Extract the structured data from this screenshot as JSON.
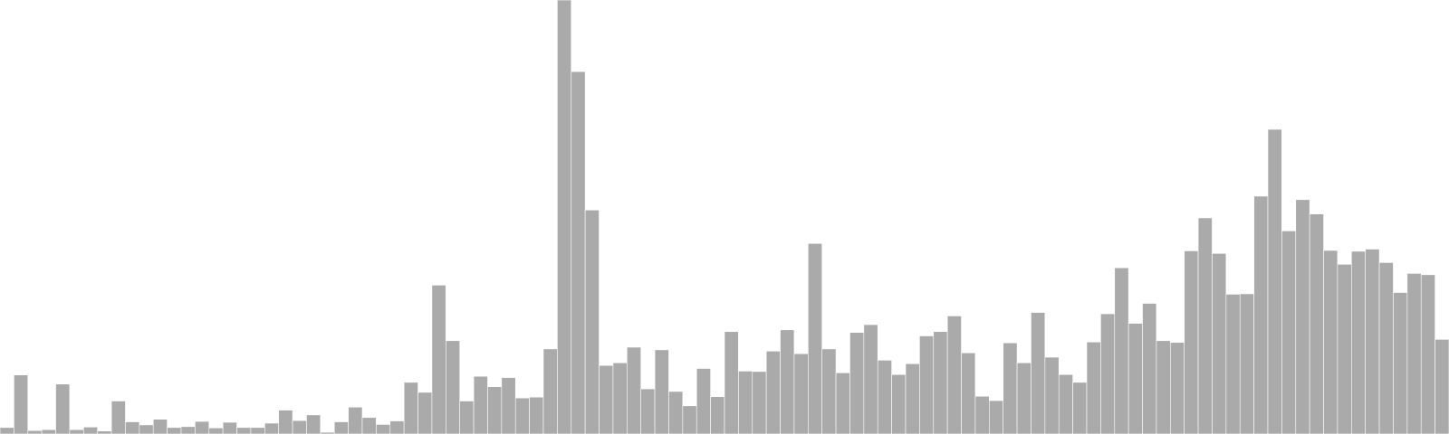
{
  "chart_data": {
    "type": "bar",
    "title": "",
    "xlabel": "",
    "ylabel": "",
    "ylim": [
      0,
      100
    ],
    "grid": false,
    "legend": "none",
    "bar_color": "#aaaaaa",
    "values": [
      1.5,
      13.6,
      0.8,
      1.0,
      11.5,
      1.0,
      1.6,
      0.7,
      7.6,
      2.8,
      2.1,
      3.4,
      1.5,
      1.7,
      2.9,
      1.4,
      2.7,
      1.5,
      1.5,
      2.5,
      5.5,
      3.1,
      4.4,
      0.4,
      2.8,
      6.2,
      3.8,
      2.2,
      3.0,
      11.9,
      9.6,
      34.3,
      21.5,
      7.6,
      13.3,
      10.9,
      13.0,
      8.3,
      8.5,
      19.6,
      100.0,
      83.5,
      51.6,
      15.8,
      16.4,
      20.0,
      10.4,
      19.4,
      9.8,
      6.5,
      15.1,
      8.6,
      23.6,
      14.5,
      14.4,
      19.1,
      24.0,
      18.5,
      43.9,
      19.6,
      14.1,
      23.4,
      25.2,
      17.0,
      13.7,
      16.2,
      22.6,
      23.6,
      27.2,
      18.7,
      8.7,
      7.7,
      21.0,
      16.4,
      28.0,
      17.7,
      13.7,
      11.9,
      21.2,
      27.7,
      38.3,
      25.5,
      30.1,
      21.5,
      21.1,
      42.2,
      49.8,
      41.6,
      32.2,
      32.3,
      54.8,
      70.2,
      46.8,
      54.0,
      50.7,
      42.3,
      39.1,
      42.1,
      42.6,
      39.5,
      32.6,
      37.0,
      36.7,
      21.8
    ]
  }
}
